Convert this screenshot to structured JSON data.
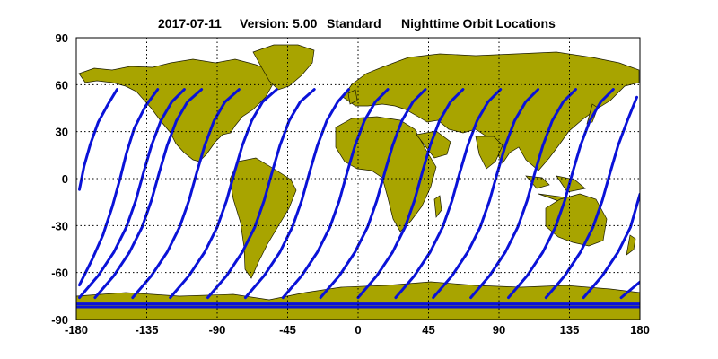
{
  "figure": {
    "date": "2017-07-11",
    "version": "Version: 5.00",
    "mode": "Standard",
    "title": "Nighttime Orbit Locations"
  },
  "colors": {
    "land": "#a8a400",
    "coast": "#1a1a00",
    "orbit": "#0a12d8",
    "grid": "#000000",
    "background": "#ffffff"
  },
  "map": {
    "projection": "equirectangular",
    "xlim": [
      -180,
      180
    ],
    "ylim": [
      -90,
      90
    ],
    "grid": "dotted",
    "x_ticks": [
      "-180",
      "-135",
      "-90",
      "-45",
      "0",
      "45",
      "90",
      "135",
      "180"
    ],
    "y_ticks": [
      "90",
      "60",
      "30",
      "0",
      "-30",
      "-60",
      "-90"
    ],
    "x_tick_values": [
      -180,
      -135,
      -90,
      -45,
      0,
      45,
      90,
      135,
      180
    ],
    "y_tick_values": [
      90,
      60,
      30,
      0,
      -30,
      -60,
      -90
    ]
  },
  "chart_data": {
    "type": "line",
    "series": [
      {
        "values": [
          [
            -178,
            -7
          ],
          [
            -175,
            8
          ],
          [
            -171,
            22
          ],
          [
            -166,
            36
          ],
          [
            -160,
            47
          ],
          [
            -154,
            57
          ]
        ]
      },
      {
        "values": [
          [
            -178,
            -68
          ],
          [
            -170,
            -52
          ],
          [
            -163,
            -36
          ],
          [
            -157,
            -18
          ],
          [
            -152,
            0
          ],
          [
            -148,
            16
          ],
          [
            -143,
            32
          ],
          [
            -136,
            46
          ],
          [
            -128,
            57
          ]
        ]
      },
      {
        "values": [
          [
            -178,
            -76
          ],
          [
            -166,
            -62
          ],
          [
            -156,
            -47
          ],
          [
            -148,
            -31
          ],
          [
            -142,
            -14
          ],
          [
            -137,
            4
          ],
          [
            -132,
            21
          ],
          [
            -126,
            37
          ],
          [
            -119,
            49
          ],
          [
            -111,
            57
          ]
        ]
      },
      {
        "values": [
          [
            -168,
            -76
          ],
          [
            -156,
            -62
          ],
          [
            -146,
            -47
          ],
          [
            -138,
            -31
          ],
          [
            -132,
            -14
          ],
          [
            -127,
            4
          ],
          [
            -122,
            21
          ],
          [
            -116,
            37
          ],
          [
            -109,
            49
          ],
          [
            -100,
            57
          ]
        ]
      },
      {
        "values": [
          [
            -144,
            -76
          ],
          [
            -132,
            -62
          ],
          [
            -122,
            -47
          ],
          [
            -114,
            -31
          ],
          [
            -108,
            -14
          ],
          [
            -103,
            4
          ],
          [
            -98,
            21
          ],
          [
            -92,
            37
          ],
          [
            -85,
            49
          ],
          [
            -76,
            57
          ]
        ]
      },
      {
        "values": [
          [
            -120,
            -76
          ],
          [
            -108,
            -62
          ],
          [
            -98,
            -47
          ],
          [
            -90,
            -31
          ],
          [
            -84,
            -14
          ],
          [
            -79,
            4
          ],
          [
            -74,
            21
          ],
          [
            -68,
            37
          ],
          [
            -61,
            49
          ],
          [
            -52,
            57
          ]
        ]
      },
      {
        "values": [
          [
            -96,
            -76
          ],
          [
            -84,
            -62
          ],
          [
            -74,
            -47
          ],
          [
            -66,
            -31
          ],
          [
            -60,
            -14
          ],
          [
            -55,
            4
          ],
          [
            -50,
            21
          ],
          [
            -44,
            37
          ],
          [
            -37,
            49
          ],
          [
            -28,
            57
          ]
        ]
      },
      {
        "values": [
          [
            -72,
            -76
          ],
          [
            -60,
            -62
          ],
          [
            -50,
            -47
          ],
          [
            -42,
            -31
          ],
          [
            -36,
            -14
          ],
          [
            -31,
            4
          ],
          [
            -26,
            21
          ],
          [
            -20,
            37
          ],
          [
            -13,
            49
          ],
          [
            -6,
            57
          ]
        ]
      },
      {
        "values": [
          [
            -48,
            -76
          ],
          [
            -36,
            -62
          ],
          [
            -26,
            -47
          ],
          [
            -18,
            -31
          ],
          [
            -12,
            -14
          ],
          [
            -7,
            4
          ],
          [
            -2,
            21
          ],
          [
            4,
            37
          ],
          [
            11,
            49
          ],
          [
            19,
            57
          ]
        ]
      },
      {
        "values": [
          [
            -24,
            -76
          ],
          [
            -12,
            -62
          ],
          [
            -2,
            -47
          ],
          [
            6,
            -31
          ],
          [
            12,
            -14
          ],
          [
            17,
            4
          ],
          [
            22,
            21
          ],
          [
            28,
            37
          ],
          [
            35,
            49
          ],
          [
            43,
            57
          ]
        ]
      },
      {
        "values": [
          [
            0,
            -76
          ],
          [
            12,
            -62
          ],
          [
            22,
            -47
          ],
          [
            30,
            -31
          ],
          [
            36,
            -14
          ],
          [
            41,
            4
          ],
          [
            46,
            21
          ],
          [
            52,
            37
          ],
          [
            59,
            49
          ],
          [
            67,
            57
          ]
        ]
      },
      {
        "values": [
          [
            24,
            -76
          ],
          [
            36,
            -62
          ],
          [
            46,
            -47
          ],
          [
            54,
            -31
          ],
          [
            60,
            -14
          ],
          [
            65,
            4
          ],
          [
            70,
            21
          ],
          [
            76,
            37
          ],
          [
            83,
            49
          ],
          [
            91,
            57
          ]
        ]
      },
      {
        "values": [
          [
            48,
            -76
          ],
          [
            60,
            -62
          ],
          [
            70,
            -47
          ],
          [
            78,
            -31
          ],
          [
            84,
            -14
          ],
          [
            89,
            4
          ],
          [
            94,
            21
          ],
          [
            100,
            37
          ],
          [
            107,
            49
          ],
          [
            115,
            57
          ]
        ]
      },
      {
        "values": [
          [
            72,
            -76
          ],
          [
            84,
            -62
          ],
          [
            94,
            -47
          ],
          [
            102,
            -31
          ],
          [
            108,
            -14
          ],
          [
            113,
            4
          ],
          [
            118,
            21
          ],
          [
            124,
            37
          ],
          [
            131,
            49
          ],
          [
            139,
            57
          ]
        ]
      },
      {
        "values": [
          [
            96,
            -76
          ],
          [
            108,
            -62
          ],
          [
            118,
            -47
          ],
          [
            126,
            -31
          ],
          [
            132,
            -14
          ],
          [
            137,
            4
          ],
          [
            142,
            21
          ],
          [
            148,
            37
          ],
          [
            155,
            49
          ],
          [
            163,
            57
          ]
        ]
      },
      {
        "values": [
          [
            120,
            -76
          ],
          [
            132,
            -62
          ],
          [
            142,
            -47
          ],
          [
            150,
            -31
          ],
          [
            156,
            -14
          ],
          [
            161,
            4
          ],
          [
            166,
            21
          ],
          [
            172,
            37
          ],
          [
            178,
            52
          ]
        ]
      },
      {
        "values": [
          [
            144,
            -76
          ],
          [
            156,
            -62
          ],
          [
            166,
            -47
          ],
          [
            174,
            -31
          ],
          [
            180,
            -10
          ]
        ]
      },
      {
        "values": [
          [
            168,
            -76
          ],
          [
            180,
            -66
          ]
        ]
      },
      {
        "values": [
          [
            -180,
            -80
          ],
          [
            180,
            -80
          ]
        ]
      },
      {
        "values": [
          [
            -180,
            -82
          ],
          [
            180,
            -82
          ]
        ]
      }
    ]
  }
}
